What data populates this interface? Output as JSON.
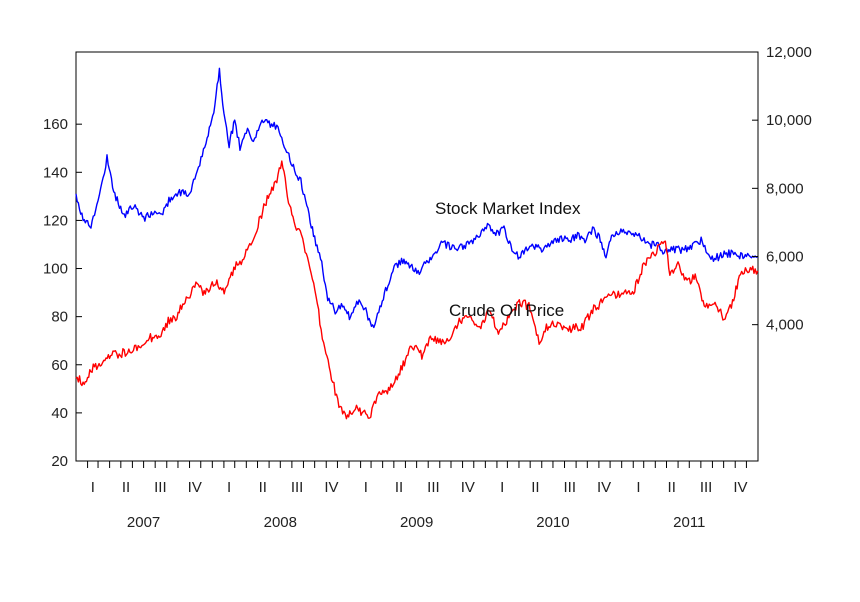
{
  "chart_data": {
    "type": "line",
    "title": "",
    "x_range": [
      "2007-01",
      "2011-12"
    ],
    "quarter_labels": [
      "I",
      "II",
      "III",
      "IV"
    ],
    "year_labels": [
      "2007",
      "2008",
      "2009",
      "2010",
      "2011"
    ],
    "left_axis": {
      "ylim": [
        20,
        190
      ],
      "ticks": [
        20,
        40,
        60,
        80,
        100,
        120,
        140,
        160
      ]
    },
    "right_axis": {
      "ylim": [
        0,
        12000
      ],
      "ticks": [
        4000,
        6000,
        8000,
        10000,
        12000
      ],
      "tick_labels": [
        "4,000",
        "6,000",
        "8,000",
        "10,000",
        "12,000"
      ]
    },
    "grid": false,
    "legend": "none",
    "annotations": [
      {
        "text": "Stock Market Index",
        "series": "stock"
      },
      {
        "text": "Crude Oil Price",
        "series": "oil"
      }
    ],
    "series": [
      {
        "id": "stock",
        "axis": "right",
        "color": "#0000ff",
        "points": [
          [
            "2007-01-01",
            7800
          ],
          [
            "2007-01-20",
            7100
          ],
          [
            "2007-02-10",
            6900
          ],
          [
            "2007-03-01",
            7600
          ],
          [
            "2007-03-25",
            8900
          ],
          [
            "2007-04-15",
            7800
          ],
          [
            "2007-05-10",
            7200
          ],
          [
            "2007-06-05",
            7500
          ],
          [
            "2007-07-01",
            7100
          ],
          [
            "2007-07-25",
            7300
          ],
          [
            "2007-08-15",
            7200
          ],
          [
            "2007-09-10",
            7700
          ],
          [
            "2007-10-05",
            7900
          ],
          [
            "2007-10-30",
            7800
          ],
          [
            "2007-11-25",
            8600
          ],
          [
            "2007-12-15",
            9300
          ],
          [
            "2008-01-05",
            10300
          ],
          [
            "2008-01-20",
            11500
          ],
          [
            "2008-02-01",
            10200
          ],
          [
            "2008-02-15",
            9300
          ],
          [
            "2008-03-01",
            10000
          ],
          [
            "2008-03-15",
            9200
          ],
          [
            "2008-04-01",
            9700
          ],
          [
            "2008-04-20",
            9400
          ],
          [
            "2008-05-10",
            10000
          ],
          [
            "2008-06-01",
            9900
          ],
          [
            "2008-06-25",
            9800
          ],
          [
            "2008-07-15",
            9200
          ],
          [
            "2008-08-05",
            8600
          ],
          [
            "2008-08-25",
            8200
          ],
          [
            "2008-09-10",
            7500
          ],
          [
            "2008-10-01",
            6500
          ],
          [
            "2008-10-20",
            5800
          ],
          [
            "2008-11-05",
            4800
          ],
          [
            "2008-11-25",
            4400
          ],
          [
            "2008-12-15",
            4600
          ],
          [
            "2009-01-05",
            4200
          ],
          [
            "2009-01-25",
            4700
          ],
          [
            "2009-02-15",
            4400
          ],
          [
            "2009-03-05",
            3900
          ],
          [
            "2009-03-25",
            4500
          ],
          [
            "2009-04-15",
            5200
          ],
          [
            "2009-05-05",
            5700
          ],
          [
            "2009-05-25",
            5900
          ],
          [
            "2009-06-15",
            5700
          ],
          [
            "2009-07-05",
            5500
          ],
          [
            "2009-07-25",
            5800
          ],
          [
            "2009-08-15",
            6000
          ],
          [
            "2009-09-05",
            6400
          ],
          [
            "2009-09-25",
            6300
          ],
          [
            "2009-10-15",
            6200
          ],
          [
            "2009-11-05",
            6300
          ],
          [
            "2009-11-25",
            6400
          ],
          [
            "2009-12-15",
            6600
          ],
          [
            "2010-01-10",
            6900
          ],
          [
            "2010-02-01",
            6700
          ],
          [
            "2010-02-20",
            6800
          ],
          [
            "2010-03-10",
            6300
          ],
          [
            "2010-03-30",
            6000
          ],
          [
            "2010-04-20",
            6200
          ],
          [
            "2010-05-10",
            6300
          ],
          [
            "2010-06-01",
            6200
          ],
          [
            "2010-06-25",
            6400
          ],
          [
            "2010-07-20",
            6500
          ],
          [
            "2010-08-15",
            6500
          ],
          [
            "2010-09-05",
            6600
          ],
          [
            "2010-09-25",
            6500
          ],
          [
            "2010-10-15",
            6800
          ],
          [
            "2010-11-05",
            6500
          ],
          [
            "2010-11-20",
            5900
          ],
          [
            "2010-12-05",
            6600
          ],
          [
            "2010-12-30",
            6700
          ],
          [
            "2011-01-25",
            6700
          ],
          [
            "2011-02-20",
            6600
          ],
          [
            "2011-03-15",
            6300
          ],
          [
            "2011-04-05",
            6400
          ],
          [
            "2011-04-25",
            6100
          ],
          [
            "2011-05-20",
            6200
          ],
          [
            "2011-06-15",
            6200
          ],
          [
            "2011-07-10",
            6300
          ],
          [
            "2011-08-05",
            6500
          ],
          [
            "2011-08-25",
            5900
          ],
          [
            "2011-09-20",
            6000
          ],
          [
            "2011-10-15",
            6100
          ],
          [
            "2011-11-10",
            6000
          ],
          [
            "2011-12-01",
            6000
          ],
          [
            "2011-12-31",
            6000
          ]
        ]
      },
      {
        "id": "oil",
        "axis": "left",
        "color": "#ff0000",
        "points": [
          [
            "2007-01-01",
            56
          ],
          [
            "2007-01-20",
            52
          ],
          [
            "2007-02-10",
            58
          ],
          [
            "2007-03-10",
            61
          ],
          [
            "2007-04-10",
            64
          ],
          [
            "2007-05-10",
            65
          ],
          [
            "2007-06-10",
            67
          ],
          [
            "2007-07-10",
            71
          ],
          [
            "2007-08-10",
            72
          ],
          [
            "2007-09-05",
            78
          ],
          [
            "2007-09-25",
            80
          ],
          [
            "2007-10-20",
            86
          ],
          [
            "2007-11-15",
            93
          ],
          [
            "2007-12-10",
            90
          ],
          [
            "2008-01-10",
            95
          ],
          [
            "2008-02-05",
            90
          ],
          [
            "2008-03-05",
            102
          ],
          [
            "2008-03-25",
            104
          ],
          [
            "2008-04-20",
            113
          ],
          [
            "2008-05-15",
            124
          ],
          [
            "2008-06-05",
            132
          ],
          [
            "2008-06-25",
            138
          ],
          [
            "2008-07-05",
            145
          ],
          [
            "2008-07-20",
            130
          ],
          [
            "2008-08-10",
            118
          ],
          [
            "2008-08-30",
            112
          ],
          [
            "2008-09-15",
            102
          ],
          [
            "2008-10-05",
            88
          ],
          [
            "2008-10-25",
            68
          ],
          [
            "2008-11-15",
            55
          ],
          [
            "2008-12-05",
            43
          ],
          [
            "2008-12-25",
            38
          ],
          [
            "2009-01-15",
            42
          ],
          [
            "2009-02-05",
            40
          ],
          [
            "2009-02-25",
            38
          ],
          [
            "2009-03-20",
            47
          ],
          [
            "2009-04-20",
            50
          ],
          [
            "2009-05-20",
            58
          ],
          [
            "2009-06-20",
            68
          ],
          [
            "2009-07-15",
            64
          ],
          [
            "2009-08-10",
            71
          ],
          [
            "2009-09-05",
            70
          ],
          [
            "2009-09-30",
            71
          ],
          [
            "2009-10-20",
            78
          ],
          [
            "2009-11-20",
            79
          ],
          [
            "2009-12-20",
            76
          ],
          [
            "2010-01-10",
            82
          ],
          [
            "2010-02-05",
            74
          ],
          [
            "2010-03-05",
            80
          ],
          [
            "2010-04-05",
            86
          ],
          [
            "2010-05-01",
            84
          ],
          [
            "2010-05-25",
            70
          ],
          [
            "2010-06-20",
            77
          ],
          [
            "2010-07-20",
            76
          ],
          [
            "2010-08-15",
            75
          ],
          [
            "2010-09-20",
            76
          ],
          [
            "2010-10-15",
            83
          ],
          [
            "2010-11-10",
            86
          ],
          [
            "2010-12-10",
            89
          ],
          [
            "2011-01-05",
            90
          ],
          [
            "2011-01-30",
            89
          ],
          [
            "2011-02-20",
            98
          ],
          [
            "2011-03-10",
            104
          ],
          [
            "2011-04-01",
            107
          ],
          [
            "2011-04-25",
            113
          ],
          [
            "2011-05-10",
            99
          ],
          [
            "2011-06-01",
            101
          ],
          [
            "2011-06-25",
            94
          ],
          [
            "2011-07-20",
            97
          ],
          [
            "2011-08-10",
            84
          ],
          [
            "2011-08-30",
            86
          ],
          [
            "2011-09-20",
            83
          ],
          [
            "2011-10-05",
            78
          ],
          [
            "2011-10-25",
            86
          ],
          [
            "2011-11-15",
            98
          ],
          [
            "2011-12-05",
            100
          ],
          [
            "2011-12-31",
            99
          ]
        ]
      }
    ]
  }
}
